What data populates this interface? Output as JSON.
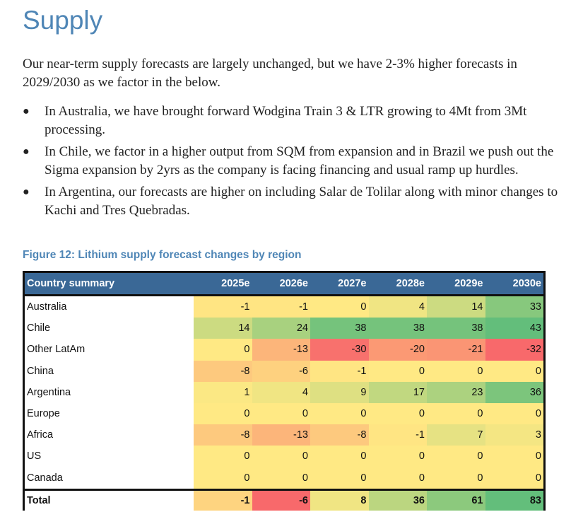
{
  "heading": "Supply",
  "intro": "Our near-term supply forecasts are largely unchanged, but we have 2-3% higher forecasts in 2029/2030 as we factor in the below.",
  "bullets": [
    "In Australia, we have brought forward Wodgina Train 3 & LTR growing to 4Mt from 3Mt processing.",
    "In Chile, we factor in a higher output from SQM from expansion and in Brazil we push out the Sigma expansion by 2yrs as the company is facing financing and usual ramp up hurdles.",
    "In Argentina, our forecasts are higher on including Salar de Tolilar along with minor changes to Kachi and Tres Quebradas."
  ],
  "figure_title": "Figure 12: Lithium supply forecast changes by region",
  "table": {
    "header": [
      "Country summary",
      "2025e",
      "2026e",
      "2027e",
      "2028e",
      "2029e",
      "2030e"
    ],
    "rows": [
      {
        "label": "Australia",
        "values": [
          -1,
          -1,
          0,
          4,
          14,
          33
        ]
      },
      {
        "label": "Chile",
        "values": [
          14,
          24,
          38,
          38,
          38,
          43
        ]
      },
      {
        "label": "Other LatAm",
        "values": [
          0,
          -13,
          -30,
          -20,
          -21,
          -32
        ]
      },
      {
        "label": "China",
        "values": [
          -8,
          -6,
          -1,
          0,
          0,
          0
        ]
      },
      {
        "label": "Argentina",
        "values": [
          1,
          4,
          9,
          17,
          23,
          36
        ]
      },
      {
        "label": "Europe",
        "values": [
          0,
          0,
          0,
          0,
          0,
          0
        ]
      },
      {
        "label": "Africa",
        "values": [
          -8,
          -13,
          -8,
          -1,
          7,
          3
        ]
      },
      {
        "label": "US",
        "values": [
          0,
          0,
          0,
          0,
          0,
          0
        ]
      },
      {
        "label": "Canada",
        "values": [
          0,
          0,
          0,
          0,
          0,
          0
        ]
      }
    ],
    "total": {
      "label": "Total",
      "values": [
        -1,
        -6,
        8,
        36,
        61,
        83
      ]
    }
  },
  "colors": {
    "neg": "#f8696b",
    "zero": "#ffe984",
    "pos": "#63be7b",
    "header_bg": "#3a6896",
    "heading": "#4f86b6"
  }
}
